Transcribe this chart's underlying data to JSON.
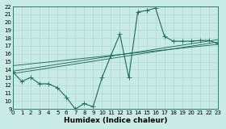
{
  "xlabel": "Humidex (Indice chaleur)",
  "bg_color": "#c8ebe6",
  "line_color": "#1a6b5e",
  "grid_color": "#b0d8d0",
  "xmin": 0,
  "xmax": 23,
  "ymin": 9,
  "ymax": 22,
  "xticks": [
    0,
    1,
    2,
    3,
    4,
    5,
    6,
    7,
    8,
    9,
    10,
    11,
    12,
    13,
    14,
    15,
    16,
    17,
    18,
    19,
    20,
    21,
    22,
    23
  ],
  "yticks": [
    9,
    10,
    11,
    12,
    13,
    14,
    15,
    16,
    17,
    18,
    19,
    20,
    21,
    22
  ],
  "line1_x": [
    0,
    1,
    2,
    3,
    4,
    5,
    6,
    7,
    8,
    9,
    10,
    11,
    12,
    13,
    14,
    15,
    16,
    17,
    18,
    19,
    20,
    21,
    22,
    23
  ],
  "line1_y": [
    13.7,
    12.5,
    13.0,
    12.2,
    12.2,
    11.7,
    10.5,
    9.0,
    9.7,
    9.3,
    13.0,
    15.8,
    18.5,
    13.0,
    21.3,
    21.5,
    21.8,
    18.2,
    17.6,
    17.6,
    17.6,
    17.7,
    17.7,
    17.3
  ],
  "line2_x": [
    0,
    23
  ],
  "line2_y": [
    13.5,
    17.5
  ],
  "line3_x": [
    0,
    23
  ],
  "line3_y": [
    13.8,
    17.8
  ],
  "line4_x": [
    0,
    23
  ],
  "line4_y": [
    14.5,
    17.2
  ],
  "markersize": 2.0,
  "linewidth": 0.8,
  "label_fontsize": 6.5,
  "tick_fontsize": 5.0
}
